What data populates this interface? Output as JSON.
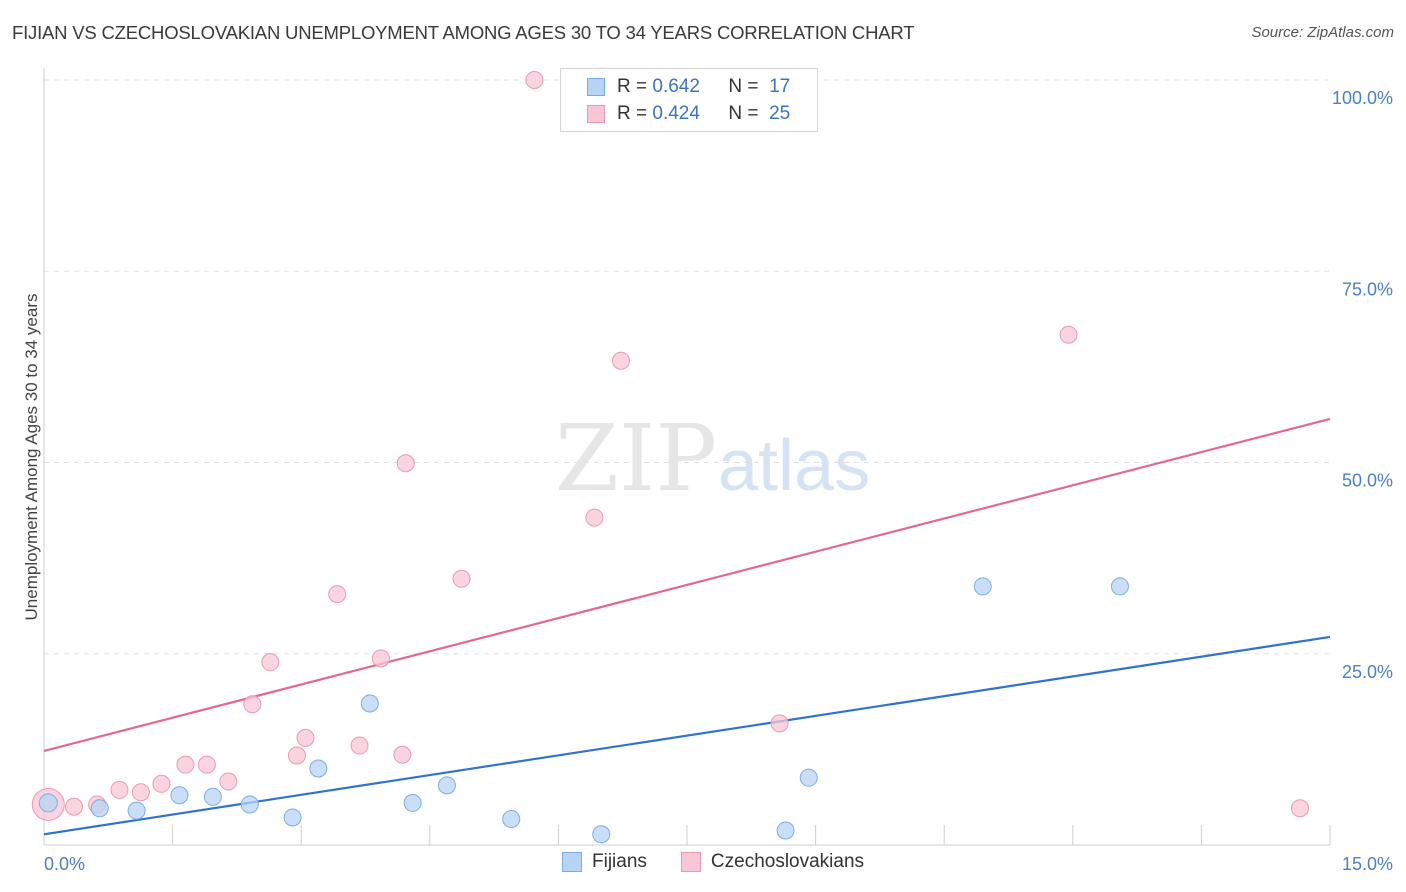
{
  "title": "FIJIAN VS CZECHOSLOVAKIAN UNEMPLOYMENT AMONG AGES 30 TO 34 YEARS CORRELATION CHART",
  "source": "Source: ZipAtlas.com",
  "watermark": {
    "zip": "ZIP",
    "atlas": "atlas"
  },
  "legend": {
    "r_label": "R =",
    "n_label": "N =",
    "rows": [
      {
        "r": "0.642",
        "n": "17"
      },
      {
        "r": "0.424",
        "n": "25"
      }
    ]
  },
  "colors": {
    "fijians_fill": "#b8d4f4",
    "fijians_stroke": "#7aaee6",
    "fijians_line": "#2e72d2",
    "czech_fill": "#f8c6d4",
    "czech_stroke": "#ec9ab2",
    "czech_line": "#e46890",
    "grid": "#e0e0e0",
    "axis_label": "#4a80c8"
  },
  "chart_data": {
    "type": "scatter",
    "title": "FIJIAN VS CZECHOSLOVAKIAN UNEMPLOYMENT AMONG AGES 30 TO 34 YEARS CORRELATION CHART",
    "xlabel": "",
    "ylabel": "Unemployment Among Ages 30 to 34 years",
    "xlim": [
      0,
      15
    ],
    "ylim": [
      0,
      100
    ],
    "x_tick_labels": [
      "0.0%",
      "15.0%"
    ],
    "y_ticks": [
      25,
      50,
      75,
      100
    ],
    "y_tick_labels": [
      "25.0%",
      "50.0%",
      "75.0%",
      "100.0%"
    ],
    "grid": true,
    "series": [
      {
        "name": "Fijians",
        "points": [
          {
            "x": 0.05,
            "y": 5.5
          },
          {
            "x": 0.65,
            "y": 4.8
          },
          {
            "x": 1.08,
            "y": 4.5
          },
          {
            "x": 1.58,
            "y": 6.5
          },
          {
            "x": 1.97,
            "y": 6.3
          },
          {
            "x": 2.4,
            "y": 5.3
          },
          {
            "x": 2.9,
            "y": 3.6
          },
          {
            "x": 3.2,
            "y": 10.0
          },
          {
            "x": 3.8,
            "y": 18.5
          },
          {
            "x": 4.3,
            "y": 5.5
          },
          {
            "x": 4.7,
            "y": 7.8
          },
          {
            "x": 5.45,
            "y": 3.4
          },
          {
            "x": 6.5,
            "y": 1.4
          },
          {
            "x": 8.65,
            "y": 1.9
          },
          {
            "x": 8.92,
            "y": 8.8
          },
          {
            "x": 10.95,
            "y": 33.8
          },
          {
            "x": 12.55,
            "y": 33.8
          }
        ],
        "trend": {
          "x0": 0,
          "y0": 1.4,
          "x1": 15,
          "y1": 27.2
        }
      },
      {
        "name": "Czechoslovakians",
        "points": [
          {
            "x": 0.05,
            "y": 5.3
          },
          {
            "x": 0.35,
            "y": 5.0
          },
          {
            "x": 0.62,
            "y": 5.3
          },
          {
            "x": 0.88,
            "y": 7.2
          },
          {
            "x": 1.13,
            "y": 6.9
          },
          {
            "x": 1.37,
            "y": 8.0
          },
          {
            "x": 1.65,
            "y": 10.5
          },
          {
            "x": 1.9,
            "y": 10.5
          },
          {
            "x": 2.15,
            "y": 8.3
          },
          {
            "x": 2.43,
            "y": 18.4
          },
          {
            "x": 2.64,
            "y": 23.9
          },
          {
            "x": 2.95,
            "y": 11.7
          },
          {
            "x": 3.05,
            "y": 14.0
          },
          {
            "x": 3.42,
            "y": 32.8
          },
          {
            "x": 3.68,
            "y": 13.0
          },
          {
            "x": 3.93,
            "y": 24.4
          },
          {
            "x": 4.18,
            "y": 11.8
          },
          {
            "x": 4.22,
            "y": 49.9
          },
          {
            "x": 4.87,
            "y": 34.8
          },
          {
            "x": 5.72,
            "y": 100.0
          },
          {
            "x": 6.42,
            "y": 42.8
          },
          {
            "x": 6.73,
            "y": 63.3
          },
          {
            "x": 8.58,
            "y": 15.9
          },
          {
            "x": 11.95,
            "y": 66.7
          },
          {
            "x": 14.65,
            "y": 4.8
          }
        ],
        "trend": {
          "x0": 0,
          "y0": 12.3,
          "x1": 15,
          "y1": 55.7
        }
      }
    ],
    "legend_entries": [
      "Fijians",
      "Czechoslovakians"
    ]
  }
}
